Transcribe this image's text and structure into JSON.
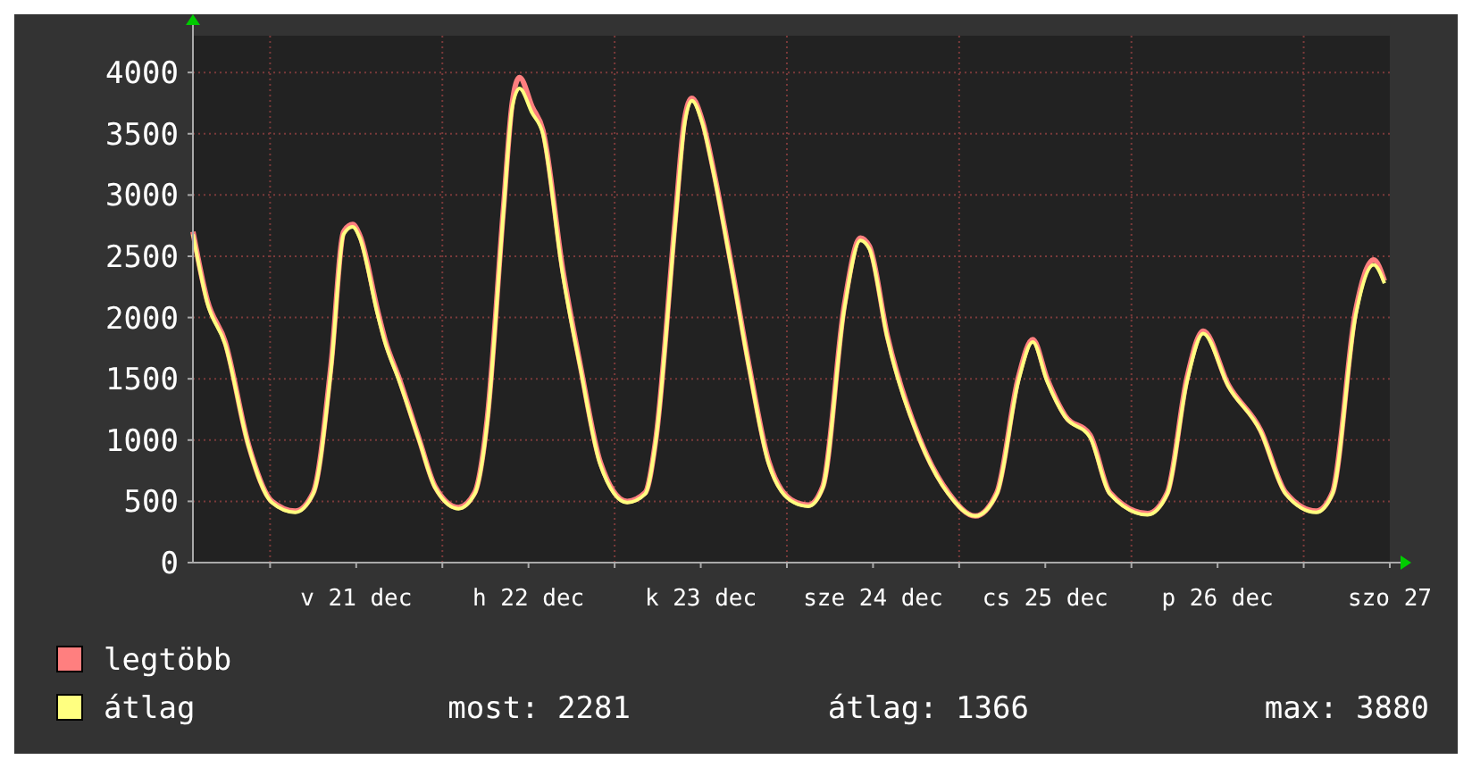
{
  "chart_data": {
    "type": "line",
    "x": [
      "--12-20T13:15",
      "--12-20T15:15",
      "--12-20T17:45",
      "--12-20T21:00",
      "--12-21T00:15",
      "--12-21T03:30",
      "--12-21T06:00",
      "--12-21T08:30",
      "--12-21T10:15",
      "--12-21T11:30",
      "--12-21T12:30",
      "--12-21T15:00",
      "--12-21T16:00",
      "--12-21T18:00",
      "--12-21T20:45",
      "--12-21T23:00",
      "--12-22T02:15",
      "--12-22T04:30",
      "--12-22T06:15",
      "--12-22T08:30",
      "--12-22T09:45",
      "--12-22T10:45",
      "--12-22T12:30",
      "--12-22T14:00",
      "--12-22T16:45",
      "--12-22T19:15",
      "--12-22T22:00",
      "--12-23T01:45",
      "--12-23T04:15",
      "--12-23T05:45",
      "--12-23T08:30",
      "--12-23T09:45",
      "--12-23T10:45",
      "--12-23T12:15",
      "--12-23T13:45",
      "--12-23T16:15",
      "--12-23T18:45",
      "--12-23T21:30",
      "--12-24T01:00",
      "--12-24T03:00",
      "--12-24T05:00",
      "--12-24T08:00",
      "--12-24T10:15",
      "--12-24T11:30",
      "--12-24T14:00",
      "--12-24T18:30",
      "--12-24T22:30",
      "--12-25T02:15",
      "--12-25T05:15",
      "--12-25T08:15",
      "--12-25T10:15",
      "--12-25T12:15",
      "--12-25T14:45",
      "--12-25T18:15",
      "--12-25T21:00",
      "--12-26T02:15",
      "--12-26T05:00",
      "--12-26T07:45",
      "--12-26T10:00",
      "--12-26T13:30",
      "--12-26T18:00",
      "--12-26T21:30",
      "--12-27T01:45",
      "--12-27T04:00",
      "--12-27T07:15",
      "--12-27T09:45",
      "--12-27T11:15"
    ],
    "series": [
      {
        "name": "legtöbb",
        "color": "#ff7f7f",
        "values": [
          2700,
          2140,
          1800,
          960,
          500,
          420,
          570,
          1620,
          2700,
          2760,
          2670,
          2050,
          1820,
          1500,
          1010,
          620,
          450,
          570,
          1170,
          2880,
          3760,
          3960,
          3720,
          3530,
          2400,
          1600,
          820,
          500,
          570,
          1010,
          2840,
          3620,
          3790,
          3600,
          3210,
          2430,
          1600,
          820,
          500,
          470,
          620,
          2100,
          2650,
          2580,
          1850,
          1010,
          570,
          380,
          570,
          1510,
          1820,
          1500,
          1200,
          1040,
          570,
          400,
          570,
          1510,
          1890,
          1450,
          1080,
          570,
          420,
          570,
          2060,
          2470,
          2300
        ]
      },
      {
        "name": "átlag",
        "color": "#ffff80",
        "values": [
          2680,
          2120,
          1780,
          950,
          490,
          410,
          560,
          1580,
          2680,
          2740,
          2650,
          2020,
          1800,
          1480,
          1000,
          610,
          440,
          560,
          1140,
          2850,
          3720,
          3870,
          3670,
          3500,
          2360,
          1580,
          800,
          490,
          560,
          1000,
          2800,
          3580,
          3770,
          3580,
          3190,
          2410,
          1580,
          800,
          490,
          460,
          610,
          2070,
          2630,
          2560,
          1830,
          1000,
          560,
          380,
          560,
          1480,
          1800,
          1480,
          1190,
          1020,
          560,
          390,
          560,
          1480,
          1870,
          1440,
          1070,
          560,
          410,
          560,
          2020,
          2430,
          2280
        ]
      }
    ],
    "xlim": [
      "--12-20T13:15",
      "--12-27T12:00"
    ],
    "xticks": [
      {
        "value": "--12-21",
        "label": null
      },
      {
        "value": "--12-21T12:00",
        "label": "v 21 dec"
      },
      {
        "value": "--12-22",
        "label": null
      },
      {
        "value": "--12-22T12:00",
        "label": "h 22 dec"
      },
      {
        "value": "--12-23",
        "label": null
      },
      {
        "value": "--12-23T12:00",
        "label": "k 23 dec"
      },
      {
        "value": "--12-24",
        "label": null
      },
      {
        "value": "--12-24T12:00",
        "label": "sze 24 dec"
      },
      {
        "value": "--12-25",
        "label": null
      },
      {
        "value": "--12-25T12:00",
        "label": "cs 25 dec"
      },
      {
        "value": "--12-26",
        "label": null
      },
      {
        "value": "--12-26T12:00",
        "label": "p 26 dec"
      },
      {
        "value": "--12-27",
        "label": null
      },
      {
        "value": "--12-27T12:00",
        "label": "szo 27"
      }
    ],
    "ylim": [
      0,
      4300
    ],
    "yticks": [
      0,
      500,
      1000,
      1500,
      2000,
      2500,
      3000,
      3500,
      4000
    ],
    "grid": true,
    "legend": "bottom",
    "marker": "none",
    "line_style": "solid",
    "annotations": [
      "most: 2281",
      "átlag: 1366",
      "max: 3880"
    ]
  }
}
